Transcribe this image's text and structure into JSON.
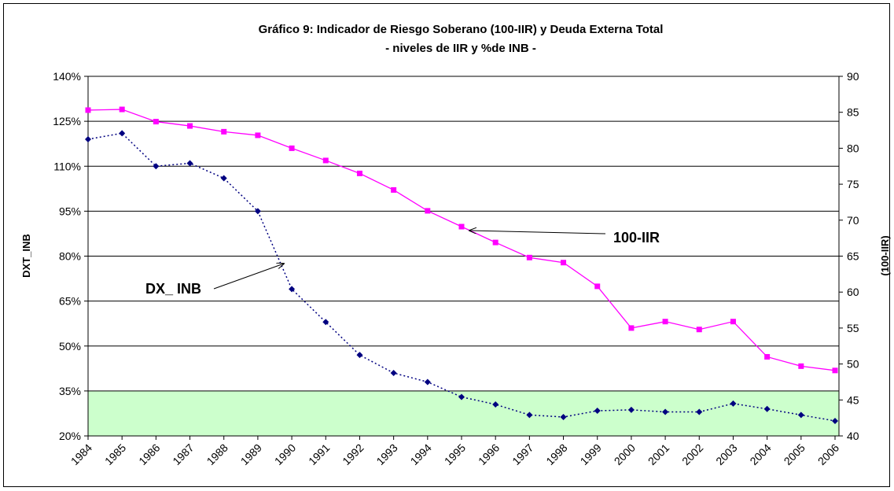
{
  "chart_data": {
    "type": "line",
    "title": "Gráfico 9: Indicador de Riesgo Soberano (100-IIR)  y Deuda  Externa Total",
    "subtitle": "- niveles de IIR y %de INB -",
    "y_label": "DXT_INB",
    "y2_label": "(100-IIR)",
    "categories": [
      "1984",
      "1985",
      "1986",
      "1987",
      "1988",
      "1989",
      "1990",
      "1991",
      "1992",
      "1993",
      "1994",
      "1995",
      "1996",
      "1997",
      "1998",
      "1999",
      "2000",
      "2001",
      "2002",
      "2003",
      "2004",
      "2005",
      "2006"
    ],
    "series": [
      {
        "name": "DX_ INB",
        "color": "#000080",
        "axis": "y",
        "values": [
          119,
          121,
          110,
          111,
          106,
          95,
          69,
          58,
          47,
          41,
          38,
          33,
          30.5,
          27,
          26.3,
          28.4,
          28.7,
          28,
          28,
          30.8,
          29,
          27,
          25
        ]
      },
      {
        "name": "100-IIR",
        "color": "#ff00ff",
        "axis": "y2",
        "values": [
          85.3,
          85.4,
          83.7,
          83.1,
          82.3,
          81.8,
          80,
          78.3,
          76.5,
          74.2,
          71.3,
          69.1,
          66.9,
          64.8,
          64.1,
          60.8,
          55,
          55.9,
          54.8,
          55.9,
          51,
          49.7,
          49.1
        ]
      }
    ],
    "ylim": [
      20,
      140
    ],
    "yticks": [
      {
        "value": 20,
        "label": "20%"
      },
      {
        "value": 35,
        "label": "35%"
      },
      {
        "value": 50,
        "label": "50%"
      },
      {
        "value": 65,
        "label": "65%"
      },
      {
        "value": 80,
        "label": "80%"
      },
      {
        "value": 95,
        "label": "95%"
      },
      {
        "value": 110,
        "label": "110%"
      },
      {
        "value": 125,
        "label": "125%"
      },
      {
        "value": 140,
        "label": "140%"
      }
    ],
    "y2lim": [
      40,
      90
    ],
    "y2ticks": [
      40,
      45,
      50,
      55,
      60,
      65,
      70,
      75,
      80,
      85,
      90
    ],
    "band": {
      "from": 20,
      "to": 35,
      "color": "#ccffcc"
    },
    "grid": true
  }
}
